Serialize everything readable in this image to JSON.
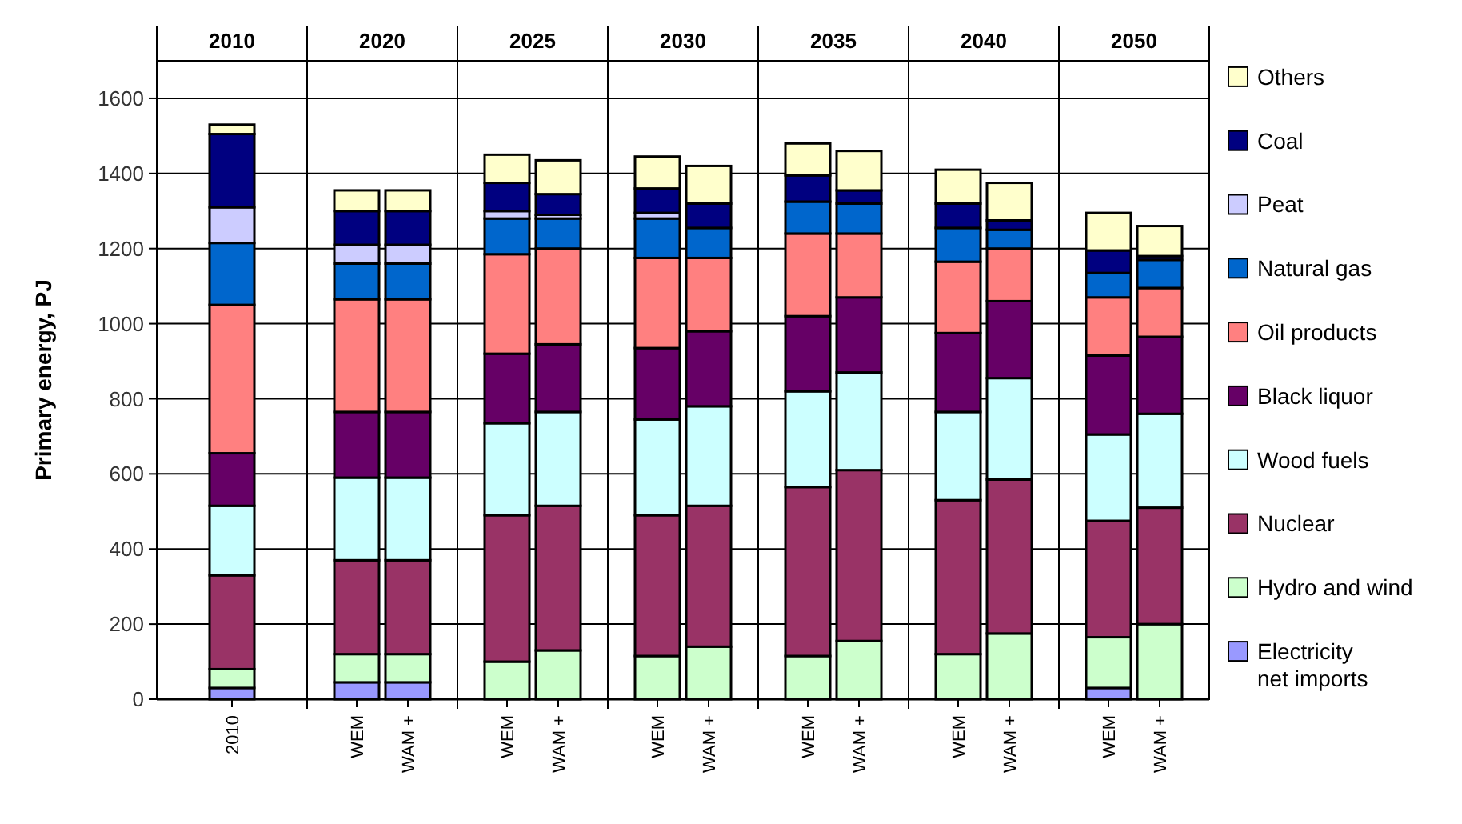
{
  "chart_data": {
    "type": "bar",
    "stacked": true,
    "ylabel": "Primary energy, PJ",
    "categories": [
      "2010",
      "WEM",
      "WAM +",
      "WEM",
      "WAM +",
      "WEM",
      "WAM +",
      "WEM",
      "WAM +",
      "WEM",
      "WAM +",
      "WEM",
      "WAM +"
    ],
    "annotations": [
      "2010",
      "2020",
      "2025",
      "2030",
      "2035",
      "2040",
      "2050"
    ],
    "ylim": [
      0,
      1700
    ],
    "yticks": [
      0,
      200,
      400,
      600,
      800,
      1000,
      1200,
      1400,
      1600
    ],
    "grid": true,
    "legend": "right",
    "series": [
      {
        "name": "Electricity net imports",
        "color": "#9999ff",
        "values": [
          30,
          45,
          45,
          0,
          0,
          0,
          0,
          0,
          0,
          0,
          0,
          30,
          0
        ]
      },
      {
        "name": "Hydro and wind",
        "color": "#ccffcc",
        "values": [
          50,
          75,
          75,
          100,
          130,
          115,
          140,
          115,
          155,
          120,
          175,
          135,
          200
        ]
      },
      {
        "name": "Nuclear",
        "color": "#993366",
        "values": [
          250,
          250,
          250,
          390,
          385,
          375,
          375,
          450,
          455,
          410,
          410,
          310,
          310
        ]
      },
      {
        "name": "Wood fuels",
        "color": "#ccffff",
        "values": [
          185,
          220,
          220,
          245,
          250,
          255,
          265,
          255,
          260,
          235,
          270,
          230,
          250
        ]
      },
      {
        "name": "Black liquor",
        "color": "#660066",
        "values": [
          140,
          175,
          175,
          185,
          180,
          190,
          200,
          200,
          200,
          210,
          205,
          210,
          205
        ]
      },
      {
        "name": "Oil products",
        "color": "#ff8080",
        "values": [
          395,
          300,
          300,
          265,
          255,
          240,
          195,
          220,
          170,
          190,
          140,
          155,
          130
        ]
      },
      {
        "name": "Natural gas",
        "color": "#0066cc",
        "values": [
          165,
          95,
          95,
          95,
          80,
          105,
          80,
          85,
          80,
          90,
          50,
          65,
          75
        ]
      },
      {
        "name": "Peat",
        "color": "#ccccff",
        "values": [
          95,
          50,
          50,
          20,
          10,
          15,
          0,
          null,
          0,
          0,
          0,
          0,
          0
        ]
      },
      {
        "name": "Coal",
        "color": "#000080",
        "values": [
          195,
          90,
          90,
          75,
          55,
          65,
          65,
          70,
          35,
          65,
          25,
          60,
          10
        ]
      },
      {
        "name": "Others",
        "color": "#ffffcc",
        "values": [
          25,
          55,
          55,
          75,
          90,
          85,
          100,
          85,
          105,
          90,
          100,
          100,
          80
        ]
      }
    ]
  }
}
